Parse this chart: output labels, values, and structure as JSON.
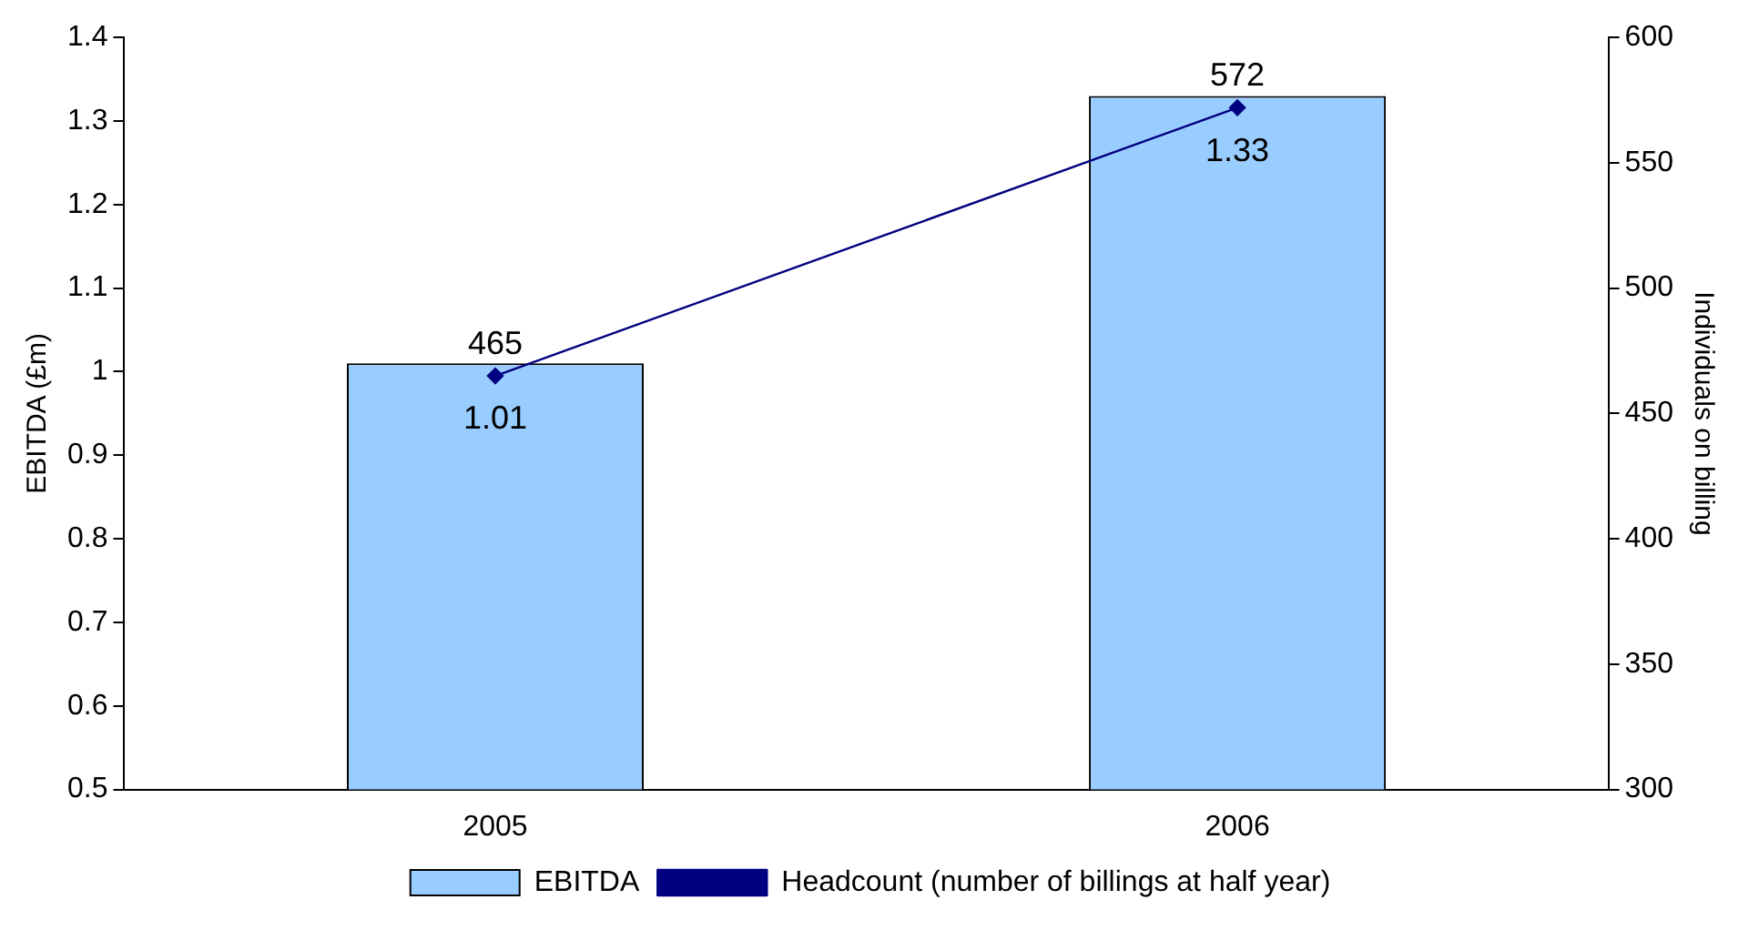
{
  "chart_data": {
    "type": "bar",
    "categories": [
      "2005",
      "2006"
    ],
    "series": [
      {
        "name": "EBITDA",
        "color": "#99ccff",
        "values": [
          1.01,
          1.33
        ]
      },
      {
        "name": "Headcount (number of billings at half year)",
        "type": "line",
        "axis": "y2",
        "color": "#000080",
        "marker": "diamond",
        "values": [
          465,
          572
        ]
      }
    ],
    "ylabel": "EBITDA (£m)",
    "y2label": "Individuals on billing",
    "ylim": [
      0.5,
      1.4
    ],
    "yticks": [
      0.5,
      0.6,
      0.7,
      0.8,
      0.9,
      1,
      1.1,
      1.2,
      1.3,
      1.4
    ],
    "y2lim": [
      300,
      600
    ],
    "y2ticks": [
      300,
      350,
      400,
      450,
      500,
      550,
      600
    ],
    "data_labels": true,
    "legend": "bottom",
    "grid": false
  }
}
